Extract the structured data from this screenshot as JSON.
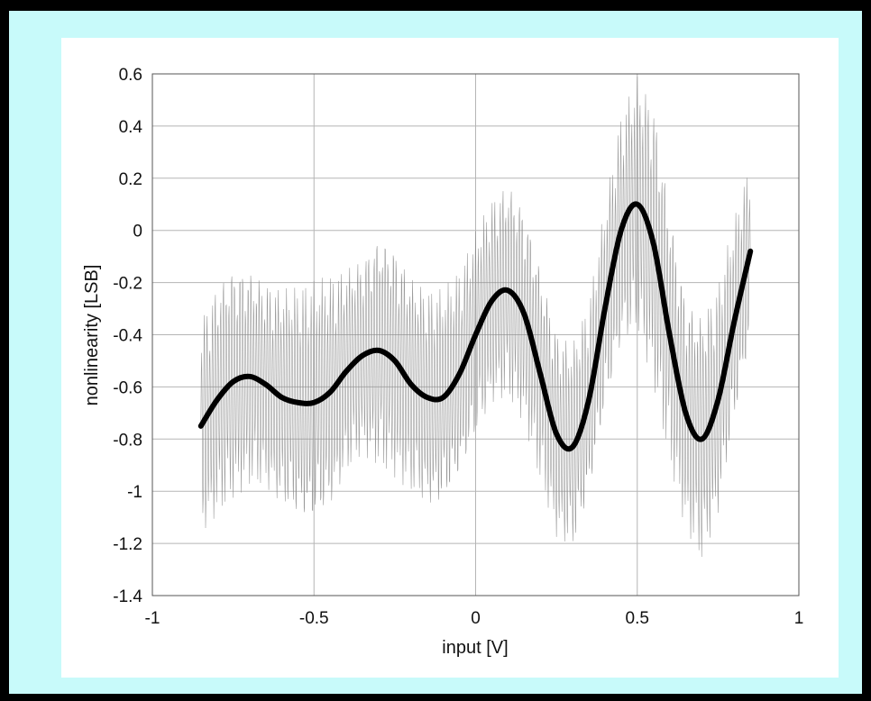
{
  "colors": {
    "outer_border": "#000000",
    "panel_background": "#c8fafa",
    "plot_background": "#ffffff",
    "grid": "#b5b5b5",
    "noisy_trace": "#8a8a8a",
    "smooth_trace": "#000000"
  },
  "chart_data": {
    "type": "line",
    "title": "",
    "xlabel": "input [V]",
    "ylabel": "nonlinearity [LSB]",
    "xlim": [
      -1,
      1
    ],
    "ylim": [
      -1.4,
      0.6
    ],
    "x_ticks": [
      -1,
      -0.5,
      0,
      0.5,
      1
    ],
    "x_tick_labels": [
      "-1",
      "-0.5",
      "0",
      "0.5",
      "1"
    ],
    "y_ticks": [
      0.6,
      0.4,
      0.2,
      0,
      -0.2,
      -0.4,
      -0.6,
      -0.8,
      -1,
      -1.2,
      -1.4
    ],
    "y_tick_labels": [
      "0.6",
      "0.4",
      "0.2",
      "0",
      "-0.2",
      "-0.4",
      "-0.6",
      "-0.8",
      "-1",
      "-1.2",
      "-1.4"
    ],
    "grid": true,
    "legend": "none",
    "series": [
      {
        "style": "smooth-thick",
        "x": [
          -0.85,
          -0.8,
          -0.75,
          -0.7,
          -0.65,
          -0.6,
          -0.55,
          -0.5,
          -0.45,
          -0.4,
          -0.35,
          -0.3,
          -0.25,
          -0.2,
          -0.15,
          -0.1,
          -0.05,
          0.0,
          0.05,
          0.1,
          0.15,
          0.2,
          0.25,
          0.3,
          0.35,
          0.4,
          0.45,
          0.5,
          0.55,
          0.6,
          0.65,
          0.7,
          0.75,
          0.8,
          0.85
        ],
        "y": [
          -0.75,
          -0.65,
          -0.58,
          -0.56,
          -0.59,
          -0.64,
          -0.66,
          -0.66,
          -0.62,
          -0.54,
          -0.48,
          -0.46,
          -0.5,
          -0.59,
          -0.64,
          -0.64,
          -0.55,
          -0.4,
          -0.27,
          -0.23,
          -0.32,
          -0.55,
          -0.78,
          -0.83,
          -0.65,
          -0.3,
          0.0,
          0.1,
          -0.05,
          -0.4,
          -0.7,
          -0.8,
          -0.65,
          -0.35,
          -0.08
        ]
      },
      {
        "style": "noisy-band",
        "x": [
          -0.85,
          -0.8,
          -0.75,
          -0.7,
          -0.65,
          -0.6,
          -0.55,
          -0.5,
          -0.45,
          -0.4,
          -0.35,
          -0.3,
          -0.25,
          -0.2,
          -0.15,
          -0.1,
          -0.05,
          0.0,
          0.05,
          0.1,
          0.15,
          0.2,
          0.25,
          0.3,
          0.35,
          0.4,
          0.45,
          0.5,
          0.55,
          0.6,
          0.65,
          0.7,
          0.75,
          0.8,
          0.85
        ],
        "amplitude": [
          0.42,
          0.45,
          0.45,
          0.42,
          0.4,
          0.42,
          0.45,
          0.47,
          0.45,
          0.4,
          0.38,
          0.45,
          0.45,
          0.42,
          0.42,
          0.42,
          0.4,
          0.4,
          0.4,
          0.42,
          0.42,
          0.42,
          0.4,
          0.4,
          0.38,
          0.4,
          0.45,
          0.5,
          0.55,
          0.5,
          0.45,
          0.48,
          0.45,
          0.4,
          0.35
        ]
      }
    ]
  }
}
